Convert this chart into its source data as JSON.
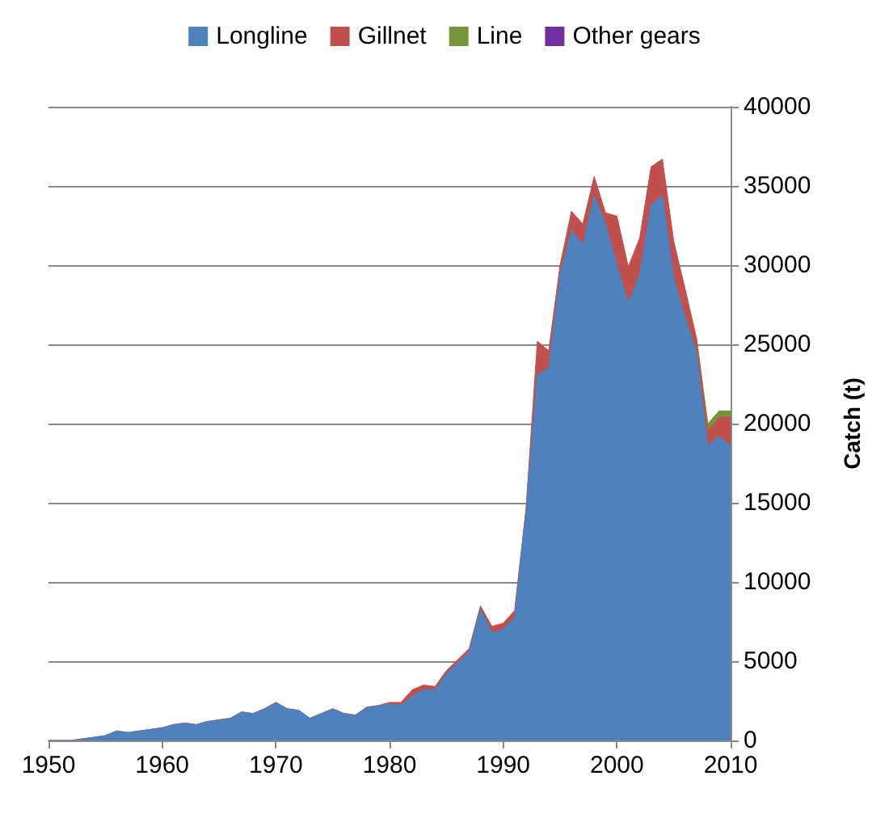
{
  "chart_data": {
    "type": "area",
    "stacked": true,
    "ylabel": "Catch (t)",
    "x": [
      1950,
      1951,
      1952,
      1953,
      1954,
      1955,
      1956,
      1957,
      1958,
      1959,
      1960,
      1961,
      1962,
      1963,
      1964,
      1965,
      1966,
      1967,
      1968,
      1969,
      1970,
      1971,
      1972,
      1973,
      1974,
      1975,
      1976,
      1977,
      1978,
      1979,
      1980,
      1981,
      1982,
      1983,
      1984,
      1985,
      1986,
      1987,
      1988,
      1989,
      1990,
      1991,
      1992,
      1993,
      1994,
      1995,
      1996,
      1997,
      1998,
      1999,
      2000,
      2001,
      2002,
      2003,
      2004,
      2005,
      2006,
      2007,
      2008,
      2009,
      2010
    ],
    "series": [
      {
        "name": "Longline",
        "color": "#4f81bd",
        "values": [
          0,
          0,
          0,
          100,
          200,
          300,
          600,
          500,
          600,
          700,
          800,
          1000,
          1100,
          1000,
          1200,
          1300,
          1400,
          1800,
          1700,
          2000,
          2400,
          2000,
          1900,
          1400,
          1700,
          2000,
          1700,
          1600,
          2100,
          2200,
          2300,
          2200,
          2800,
          3200,
          3200,
          4200,
          4900,
          5600,
          8300,
          6800,
          7000,
          7800,
          14500,
          23100,
          23500,
          29400,
          32200,
          31300,
          34400,
          32600,
          30000,
          27600,
          29400,
          33800,
          34400,
          29200,
          26700,
          24500,
          18600,
          19200,
          18600
        ]
      },
      {
        "name": "Gillnet",
        "color": "#c0504d",
        "values": [
          0,
          0,
          0,
          0,
          0,
          0,
          0,
          0,
          0,
          0,
          0,
          0,
          0,
          0,
          0,
          0,
          0,
          0,
          0,
          0,
          0,
          0,
          0,
          0,
          0,
          0,
          0,
          0,
          0,
          0,
          100,
          200,
          400,
          300,
          200,
          200,
          200,
          200,
          200,
          400,
          400,
          400,
          100,
          2100,
          1100,
          600,
          1200,
          1300,
          1200,
          700,
          3100,
          2300,
          2300,
          2400,
          2300,
          2300,
          1800,
          900,
          900,
          1200,
          1800
        ]
      },
      {
        "name": "Line",
        "color": "#77933c",
        "values": [
          null,
          null,
          null,
          null,
          null,
          null,
          null,
          null,
          null,
          null,
          null,
          null,
          null,
          null,
          null,
          null,
          null,
          null,
          null,
          null,
          null,
          null,
          null,
          null,
          null,
          null,
          null,
          null,
          null,
          null,
          null,
          null,
          null,
          null,
          null,
          null,
          null,
          null,
          null,
          null,
          null,
          null,
          null,
          null,
          null,
          null,
          null,
          null,
          null,
          null,
          null,
          null,
          null,
          null,
          null,
          null,
          null,
          0,
          500,
          400,
          400
        ]
      },
      {
        "name": "Other gears",
        "color": "#7030a0",
        "values": [
          null,
          null,
          null,
          null,
          null,
          null,
          null,
          null,
          null,
          null,
          null,
          null,
          null,
          null,
          null,
          null,
          null,
          null,
          null,
          null,
          null,
          null,
          null,
          null,
          null,
          null,
          null,
          null,
          null,
          null,
          null,
          null,
          null,
          null,
          null,
          null,
          null,
          null,
          null,
          null,
          null,
          null,
          null,
          null,
          null,
          null,
          null,
          null,
          null,
          null,
          null,
          null,
          null,
          null,
          null,
          null,
          null,
          null,
          null,
          null,
          null
        ]
      }
    ],
    "xlim": [
      1950,
      2010
    ],
    "xticks": [
      1950,
      1960,
      1970,
      1980,
      1990,
      2000,
      2010
    ],
    "ylim": [
      0,
      40000
    ],
    "yticks": [
      0,
      5000,
      10000,
      15000,
      20000,
      25000,
      30000,
      35000,
      40000
    ],
    "grid": "y",
    "legend": "top"
  }
}
